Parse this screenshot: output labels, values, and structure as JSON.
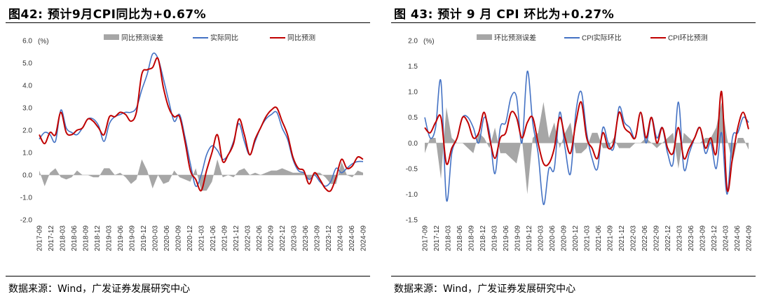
{
  "charts": [
    {
      "title": "图42:  预计9月CPI同比为+0.67%",
      "source": "数据来源：Wind，广发证券发展研究中心",
      "unit": "(%)",
      "legend": [
        "同比预测误差",
        "实际同比",
        "同比预测"
      ],
      "yticks": [
        "6.0",
        "5.0",
        "4.0",
        "3.0",
        "2.0",
        "1.0",
        "0.0",
        "-1.0",
        "-2.0"
      ],
      "xticks": [
        "2017-09",
        "2017-12",
        "2018-03",
        "2018-06",
        "2018-09",
        "2018-12",
        "2019-03",
        "2019-06",
        "2019-09",
        "2019-12",
        "2020-03",
        "2020-06",
        "2020-09",
        "2020-12",
        "2021-03",
        "2021-06",
        "2021-09",
        "2021-12",
        "2022-03",
        "2022-06",
        "2022-09",
        "2022-12",
        "2023-03",
        "2023-06",
        "2023-09",
        "2023-12",
        "2024-03",
        "2024-06",
        "2024-09"
      ]
    },
    {
      "title": "图 43:  预计 9 月 CPI 环比为+0.27%",
      "source": "数据来源：Wind，广发证券发展研究中心",
      "unit": "(%)",
      "legend": [
        "环比预测误差",
        "CPI实际环比",
        "CPI环比预测"
      ],
      "yticks": [
        "2.0",
        "1.5",
        "1.0",
        "0.5",
        "0.0",
        "-0.5",
        "-1.0",
        "-1.5"
      ],
      "xticks": [
        "2017-09",
        "2017-12",
        "2018-03",
        "2018-06",
        "2018-09",
        "2018-12",
        "2019-03",
        "2019-06",
        "2019-09",
        "2019-12",
        "2020-03",
        "2020-06",
        "2020-09",
        "2020-12",
        "2021-03",
        "2021-06",
        "2021-09",
        "2021-12",
        "2022-03",
        "2022-06",
        "2022-09",
        "2022-12",
        "2023-03",
        "2023-06",
        "2023-09",
        "2023-12",
        "2024-03",
        "2024-06",
        "2024-09"
      ]
    }
  ],
  "chart_data": [
    {
      "type": "line",
      "ylim": [
        -2,
        6
      ],
      "x_start": "2017-09",
      "x_end": "2024-09",
      "colors": {
        "error": "#a6a6a6",
        "actual": "#4472c4",
        "forecast": "#c00000"
      },
      "series": [
        {
          "name": "实际同比",
          "kind": "line",
          "values": [
            1.6,
            1.9,
            1.8,
            1.5,
            2.9,
            2.1,
            1.9,
            1.8,
            2.1,
            2.5,
            2.5,
            2.2,
            1.5,
            2.3,
            2.6,
            2.7,
            2.8,
            2.8,
            3.0,
            3.8,
            4.5,
            5.4,
            5.2,
            4.3,
            3.3,
            2.4,
            2.7,
            1.7,
            0.5,
            -0.5,
            0.0,
            0.9,
            1.3,
            1.1,
            0.7,
            0.9,
            1.5,
            2.3,
            1.5,
            0.9,
            1.5,
            2.1,
            2.5,
            2.7,
            2.8,
            2.1,
            1.6,
            0.7,
            0.2,
            0.1,
            -0.2,
            0.0,
            -0.3,
            -0.5,
            -0.3,
            0.3,
            0.1,
            0.3,
            0.5,
            0.6,
            0.6
          ]
        },
        {
          "name": "同比预测",
          "kind": "line",
          "values": [
            1.8,
            1.4,
            1.9,
            1.8,
            2.8,
            1.9,
            1.8,
            2.0,
            2.1,
            2.5,
            2.4,
            2.1,
            1.8,
            2.6,
            2.6,
            2.8,
            2.7,
            2.4,
            2.8,
            4.5,
            4.7,
            4.8,
            5.2,
            3.9,
            3.0,
            2.6,
            2.6,
            1.5,
            0.2,
            -0.2,
            -0.7,
            0.2,
            1.0,
            1.8,
            0.6,
            0.9,
            1.4,
            2.5,
            1.8,
            0.9,
            1.6,
            2.1,
            2.6,
            2.9,
            3.0,
            2.4,
            1.8,
            0.8,
            0.3,
            0.2,
            -0.4,
            0.1,
            -0.2,
            -0.6,
            -0.7,
            -0.1,
            0.7,
            0.3,
            0.4,
            0.8,
            0.7
          ]
        },
        {
          "name": "同比预测误差",
          "kind": "area",
          "values": [
            0.2,
            -0.5,
            0.1,
            0.3,
            -0.1,
            -0.2,
            -0.1,
            0.2,
            0.0,
            0.0,
            -0.1,
            -0.1,
            0.3,
            0.3,
            0.0,
            0.1,
            -0.1,
            -0.4,
            -0.2,
            0.7,
            0.2,
            -0.6,
            0.0,
            -0.4,
            -0.3,
            0.2,
            -0.1,
            -0.2,
            -0.3,
            0.3,
            -0.7,
            -0.7,
            -0.3,
            0.7,
            -0.1,
            0.0,
            -0.1,
            0.2,
            0.3,
            0.0,
            0.1,
            0.0,
            0.1,
            0.2,
            0.2,
            0.3,
            0.2,
            0.1,
            0.1,
            0.1,
            -0.2,
            0.1,
            0.1,
            -0.1,
            -0.4,
            -0.4,
            0.6,
            0.0,
            -0.1,
            0.2,
            0.1
          ]
        }
      ]
    },
    {
      "type": "line",
      "ylim": [
        -1.5,
        2.0
      ],
      "x_start": "2017-09",
      "x_end": "2024-09",
      "colors": {
        "error": "#a6a6a6",
        "actual": "#4472c4",
        "forecast": "#c00000"
      },
      "series": [
        {
          "name": "CPI实际环比",
          "kind": "line",
          "values": [
            0.5,
            0.1,
            0.3,
            1.2,
            -1.1,
            -0.2,
            0.1,
            0.5,
            0.5,
            0.3,
            0.0,
            0.5,
            0.2,
            -0.6,
            0.3,
            0.4,
            0.9,
            0.9,
            0.0,
            1.4,
            0.4,
            -0.2,
            -1.2,
            -0.5,
            -0.5,
            0.6,
            -0.1,
            -0.6,
            0.6,
            1.0,
            0.2,
            -0.3,
            -0.5,
            0.3,
            0.0,
            -0.1,
            0.7,
            0.4,
            0.3,
            0.1,
            0.6,
            0.0,
            0.5,
            0.1,
            0.3,
            -0.2,
            -0.4,
            0.8,
            -0.5,
            -0.2,
            0.1,
            0.3,
            -0.2,
            0.0,
            -0.5,
            0.2,
            -1.0,
            0.1,
            0.2,
            0.5,
            0.4
          ]
        },
        {
          "name": "CPI环比预测",
          "kind": "line",
          "values": [
            0.3,
            0.2,
            0.4,
            0.5,
            -0.4,
            -0.1,
            0.1,
            0.5,
            0.4,
            0.1,
            0.2,
            0.6,
            0.1,
            -0.3,
            0.1,
            0.2,
            0.6,
            0.5,
            0.1,
            0.4,
            0.5,
            0.0,
            -0.4,
            -0.4,
            -0.1,
            0.5,
            0.1,
            -0.2,
            0.4,
            0.8,
            0.1,
            -0.1,
            -0.3,
            0.2,
            -0.1,
            0.0,
            0.6,
            0.3,
            0.2,
            0.1,
            0.6,
            0.1,
            0.5,
            0.0,
            0.3,
            -0.1,
            -0.2,
            0.3,
            -0.3,
            -0.1,
            0.1,
            0.3,
            -0.1,
            0.1,
            -0.2,
            1.0,
            -0.9,
            -0.3,
            0.3,
            0.6,
            0.27
          ]
        },
        {
          "name": "环比预测误差",
          "kind": "area",
          "values": [
            -0.2,
            0.1,
            0.1,
            -0.7,
            0.7,
            0.1,
            0.0,
            0.0,
            -0.1,
            -0.2,
            0.2,
            0.1,
            -0.1,
            0.3,
            -0.2,
            -0.2,
            -0.3,
            -0.4,
            0.1,
            -1.0,
            0.1,
            0.2,
            0.8,
            0.1,
            0.4,
            -0.1,
            0.2,
            0.4,
            -0.2,
            -0.2,
            -0.1,
            0.2,
            0.2,
            -0.1,
            -0.1,
            0.1,
            -0.1,
            -0.1,
            -0.1,
            0.0,
            0.0,
            0.1,
            0.0,
            -0.1,
            0.0,
            0.1,
            0.2,
            -0.5,
            0.2,
            0.1,
            0.0,
            0.0,
            0.1,
            0.1,
            0.3,
            0.8,
            0.1,
            -0.4,
            0.1,
            0.1,
            -0.13
          ]
        }
      ]
    }
  ]
}
